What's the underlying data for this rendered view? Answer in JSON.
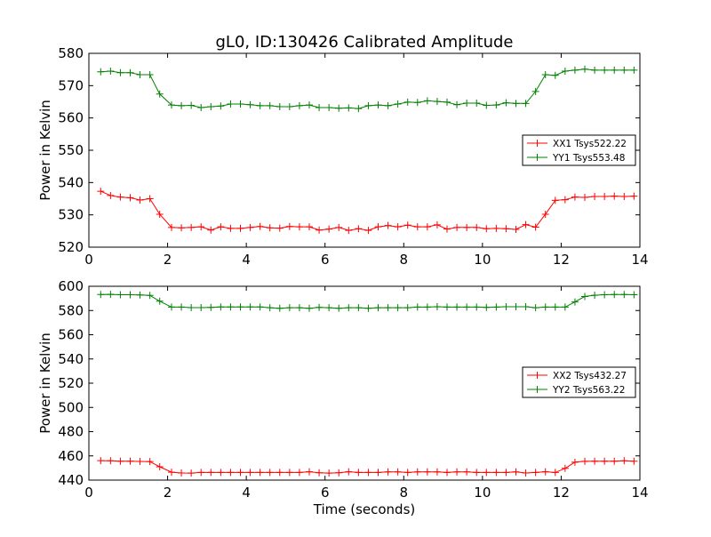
{
  "title": "gL0, ID:130426 Calibrated Amplitude",
  "colors": {
    "red": "#ff0000",
    "green": "#008000",
    "axis": "#000000",
    "background": "#ffffff"
  },
  "chart_data": [
    {
      "type": "line",
      "title": "gL0, ID:130426 Calibrated Amplitude",
      "xlabel": "",
      "ylabel": "Power in Kelvin",
      "xlim": [
        0,
        14
      ],
      "ylim": [
        520,
        580
      ],
      "xticks": [
        0,
        2,
        4,
        6,
        8,
        10,
        12,
        14
      ],
      "yticks": [
        520,
        530,
        540,
        550,
        560,
        570,
        580
      ],
      "grid": false,
      "legend_position": "right",
      "x": [
        0.3,
        0.55,
        0.8,
        1.05,
        1.3,
        1.55,
        1.8,
        2.1,
        2.35,
        2.6,
        2.85,
        3.1,
        3.35,
        3.6,
        3.85,
        4.1,
        4.35,
        4.6,
        4.85,
        5.1,
        5.35,
        5.6,
        5.85,
        6.1,
        6.35,
        6.6,
        6.85,
        7.1,
        7.35,
        7.6,
        7.85,
        8.1,
        8.35,
        8.6,
        8.85,
        9.1,
        9.35,
        9.6,
        9.85,
        10.1,
        10.35,
        10.6,
        10.85,
        11.1,
        11.35,
        11.6,
        11.85,
        12.1,
        12.35,
        12.6,
        12.85,
        13.1,
        13.35,
        13.6,
        13.85
      ],
      "series": [
        {
          "name": "XX1 Tsys522.22",
          "color": "#ff0000",
          "marker": "+",
          "values": [
            537.3,
            536.0,
            535.5,
            535.3,
            534.6,
            535.0,
            530.2,
            526.1,
            526.0,
            526.1,
            526.3,
            525.3,
            526.3,
            525.8,
            525.8,
            526.1,
            526.4,
            526.0,
            525.9,
            526.4,
            526.3,
            526.3,
            525.3,
            525.6,
            526.1,
            525.2,
            525.7,
            525.2,
            526.3,
            526.7,
            526.3,
            526.8,
            526.3,
            526.3,
            526.9,
            525.6,
            526.1,
            526.1,
            526.1,
            525.7,
            525.8,
            525.7,
            525.5,
            527.0,
            526.2,
            530.2,
            534.5,
            534.7,
            535.5,
            535.4,
            535.7,
            535.7,
            535.8,
            535.7,
            535.8
          ]
        },
        {
          "name": "YY1 Tsys553.48",
          "color": "#008000",
          "marker": "+",
          "values": [
            574.3,
            574.5,
            574.0,
            574.0,
            573.4,
            573.4,
            567.4,
            564.0,
            563.8,
            563.9,
            563.2,
            563.5,
            563.7,
            564.3,
            564.3,
            564.1,
            563.8,
            563.8,
            563.5,
            563.5,
            563.8,
            564.0,
            563.2,
            563.2,
            563.0,
            563.1,
            562.9,
            563.8,
            564.0,
            563.8,
            564.3,
            564.9,
            564.8,
            565.3,
            565.1,
            564.9,
            564.1,
            564.6,
            564.6,
            563.9,
            564.0,
            564.7,
            564.5,
            564.5,
            568.2,
            573.4,
            573.2,
            574.5,
            574.8,
            575.1,
            574.8,
            574.8,
            574.8,
            574.8,
            574.8
          ]
        }
      ]
    },
    {
      "type": "line",
      "title": "",
      "xlabel": "Time (seconds)",
      "ylabel": "Power in Kelvin",
      "xlim": [
        0,
        14
      ],
      "ylim": [
        440,
        600
      ],
      "xticks": [
        0,
        2,
        4,
        6,
        8,
        10,
        12,
        14
      ],
      "yticks": [
        440,
        460,
        480,
        500,
        520,
        540,
        560,
        580,
        600
      ],
      "grid": false,
      "legend_position": "right",
      "x": [
        0.3,
        0.55,
        0.8,
        1.05,
        1.3,
        1.55,
        1.8,
        2.1,
        2.35,
        2.6,
        2.85,
        3.1,
        3.35,
        3.6,
        3.85,
        4.1,
        4.35,
        4.6,
        4.85,
        5.1,
        5.35,
        5.6,
        5.85,
        6.1,
        6.35,
        6.6,
        6.85,
        7.1,
        7.35,
        7.6,
        7.85,
        8.1,
        8.35,
        8.6,
        8.85,
        9.1,
        9.35,
        9.6,
        9.85,
        10.1,
        10.35,
        10.6,
        10.85,
        11.1,
        11.35,
        11.6,
        11.85,
        12.1,
        12.35,
        12.6,
        12.85,
        13.1,
        13.35,
        13.6,
        13.85
      ],
      "series": [
        {
          "name": "XX2 Tsys432.27",
          "color": "#ff0000",
          "marker": "+",
          "values": [
            456.1,
            456.0,
            455.6,
            455.6,
            455.4,
            455.3,
            451.0,
            446.5,
            445.9,
            445.8,
            446.3,
            446.3,
            446.3,
            446.3,
            446.3,
            446.3,
            446.3,
            446.3,
            446.3,
            446.3,
            446.3,
            446.9,
            446.1,
            445.8,
            446.1,
            446.9,
            446.3,
            446.3,
            446.3,
            446.8,
            446.8,
            446.3,
            446.8,
            446.8,
            446.8,
            446.3,
            446.8,
            446.8,
            446.3,
            446.3,
            446.3,
            446.3,
            446.8,
            445.9,
            446.3,
            446.9,
            446.3,
            449.7,
            454.8,
            455.5,
            455.6,
            455.6,
            455.6,
            456.0,
            455.6
          ]
        },
        {
          "name": "YY2 Tsys563.22",
          "color": "#008000",
          "marker": "+",
          "values": [
            593.2,
            593.3,
            593.0,
            593.0,
            592.8,
            592.5,
            587.7,
            582.8,
            582.8,
            582.4,
            582.4,
            582.6,
            582.9,
            582.9,
            582.9,
            582.9,
            582.9,
            582.3,
            581.8,
            582.3,
            582.3,
            581.8,
            582.6,
            582.3,
            581.8,
            582.3,
            582.3,
            581.8,
            582.3,
            582.3,
            582.3,
            582.3,
            582.8,
            582.8,
            583.1,
            582.8,
            582.8,
            582.8,
            582.8,
            582.6,
            582.8,
            583.1,
            583.1,
            583.1,
            582.3,
            582.8,
            582.8,
            582.8,
            587.1,
            591.6,
            592.6,
            593.0,
            593.2,
            593.2,
            593.0
          ]
        }
      ]
    }
  ]
}
